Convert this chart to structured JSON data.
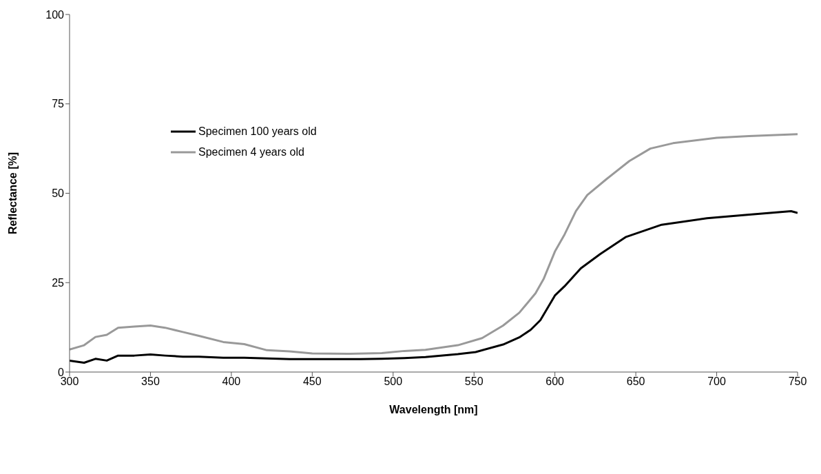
{
  "chart_data": {
    "type": "line",
    "xlabel": "Wavelength [nm]",
    "ylabel": "Reflectance [%]",
    "xlim": [
      300,
      750
    ],
    "xticks": [
      300,
      350,
      400,
      450,
      500,
      550,
      600,
      650,
      700,
      750
    ],
    "ylim": [
      0,
      100
    ],
    "yticks": [
      0,
      25,
      50,
      75,
      100
    ],
    "grid": false,
    "legend": "top left",
    "marker": "none",
    "line_style": "solid",
    "series": [
      {
        "name": "Specimen 100 years old",
        "color": "#000000",
        "x": [
          300,
          309,
          316,
          323,
          330,
          340,
          350,
          359,
          370,
          380,
          395,
          408,
          422,
          436,
          450,
          465,
          480,
          493,
          507,
          520,
          540,
          551,
          568,
          578,
          585,
          591,
          600,
          606,
          616,
          628,
          644,
          666,
          694,
          719,
          746,
          750
        ],
        "values": [
          3.2,
          2.6,
          3.7,
          3.2,
          4.6,
          4.6,
          4.9,
          4.6,
          4.3,
          4.3,
          4.0,
          4.0,
          3.8,
          3.6,
          3.6,
          3.6,
          3.6,
          3.7,
          3.9,
          4.2,
          5.0,
          5.6,
          7.7,
          9.7,
          11.8,
          14.5,
          21.4,
          24,
          29,
          33,
          37.8,
          41.2,
          43,
          44,
          45,
          44.5
        ]
      },
      {
        "name": "Specimen 4 years old",
        "color": "#999999",
        "x": [
          300,
          309,
          316,
          323,
          330,
          340,
          350,
          359,
          370,
          380,
          395,
          408,
          422,
          436,
          450,
          472,
          493,
          507,
          520,
          540,
          555,
          568,
          578,
          588,
          593,
          600,
          606,
          613,
          620,
          632,
          646,
          659,
          673,
          700,
          720,
          750
        ],
        "values": [
          6.3,
          7.5,
          9.8,
          10.4,
          12.4,
          12.7,
          13,
          12.4,
          11.2,
          10.1,
          8.4,
          7.8,
          6.1,
          5.8,
          5.2,
          5.1,
          5.3,
          5.9,
          6.2,
          7.5,
          9.5,
          13,
          16.6,
          22,
          26,
          33.7,
          38.5,
          45,
          49.5,
          54,
          59,
          62.5,
          64,
          65.5,
          66,
          66.5
        ]
      }
    ]
  }
}
